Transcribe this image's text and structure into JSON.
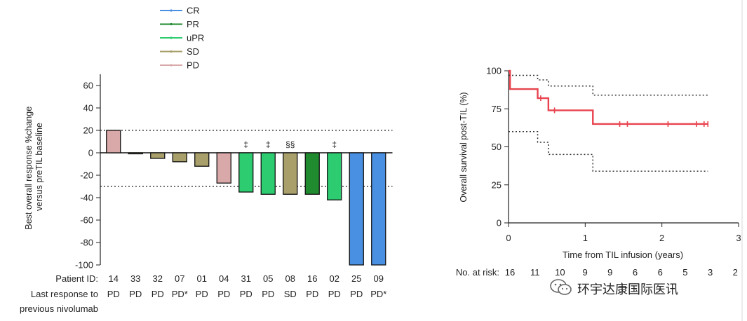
{
  "chart_data": [
    {
      "type": "bar",
      "ylabel": "Best overall response %change versus preTIL baseline",
      "ylim": [
        -100,
        70
      ],
      "yticks": [
        60,
        40,
        20,
        0,
        -20,
        -40,
        -60,
        -80,
        -100
      ],
      "ytick_labels": [
        "60",
        "40",
        "20",
        "0",
        "-20",
        "-40",
        "-60",
        "-80",
        "-100"
      ],
      "reference_lines": [
        20,
        -30
      ],
      "legend": {
        "placement": "top-center",
        "entries": [
          {
            "label": "CR",
            "color": "#4a90e2"
          },
          {
            "label": "PR",
            "color": "#1f8a2e"
          },
          {
            "label": "uPR",
            "color": "#2ecc71"
          },
          {
            "label": "SD",
            "color": "#a89f6b"
          },
          {
            "label": "PD",
            "color": "#d9a8a8"
          }
        ]
      },
      "row_labels": {
        "patient_id": "Patient ID:",
        "last_response_1": "Last response to",
        "last_response_2": "previous nivolumab"
      },
      "bars": [
        {
          "patient_id": "14",
          "last_response": "PD",
          "value": 20,
          "category": "PD",
          "marker": ""
        },
        {
          "patient_id": "33",
          "last_response": "PD",
          "value": -0.5,
          "category": "SD",
          "marker": ""
        },
        {
          "patient_id": "32",
          "last_response": "PD",
          "value": -5,
          "category": "SD",
          "marker": ""
        },
        {
          "patient_id": "07",
          "last_response": "PD*",
          "value": -8,
          "category": "SD",
          "marker": ""
        },
        {
          "patient_id": "01",
          "last_response": "PD",
          "value": -12,
          "category": "SD",
          "marker": ""
        },
        {
          "patient_id": "04",
          "last_response": "PD",
          "value": -27,
          "category": "PD",
          "marker": ""
        },
        {
          "patient_id": "31",
          "last_response": "PD",
          "value": -35,
          "category": "uPR",
          "marker": "‡"
        },
        {
          "patient_id": "05",
          "last_response": "PD",
          "value": -37,
          "category": "uPR",
          "marker": "‡"
        },
        {
          "patient_id": "08",
          "last_response": "SD",
          "value": -37,
          "category": "SD",
          "marker": "§§"
        },
        {
          "patient_id": "16",
          "last_response": "PD",
          "value": -37,
          "category": "PR",
          "marker": ""
        },
        {
          "patient_id": "02",
          "last_response": "PD",
          "value": -42,
          "category": "uPR",
          "marker": "‡"
        },
        {
          "patient_id": "25",
          "last_response": "PD",
          "value": -100,
          "category": "CR",
          "marker": ""
        },
        {
          "patient_id": "09",
          "last_response": "PD*",
          "value": -100,
          "category": "CR",
          "marker": ""
        }
      ]
    },
    {
      "type": "line",
      "ylabel": "Overall survival post-TIL (%)",
      "xlabel": "Time from TIL infusion (years)",
      "xlim": [
        0,
        3
      ],
      "ylim": [
        0,
        100
      ],
      "xticks": [
        0,
        1,
        2,
        3
      ],
      "yticks": [
        0,
        25,
        50,
        75,
        100
      ],
      "series": [
        {
          "role": "estimate",
          "color": "#e8434f",
          "style": "solid",
          "x": [
            0,
            0.02,
            0.38,
            0.52,
            1.1,
            2.6
          ],
          "y": [
            100,
            88,
            82,
            74,
            65,
            65
          ]
        },
        {
          "role": "upper-ci",
          "color": "#333333",
          "style": "dotted",
          "x": [
            0,
            0.38,
            0.52,
            1.1,
            2.6
          ],
          "y": [
            97,
            94,
            90,
            84,
            84
          ]
        },
        {
          "role": "lower-ci",
          "color": "#333333",
          "style": "dotted",
          "x": [
            0,
            0.38,
            0.52,
            1.1,
            2.6
          ],
          "y": [
            60,
            53,
            45,
            34,
            34
          ]
        }
      ],
      "censor_marks": [
        {
          "x": 0.42,
          "y": 82
        },
        {
          "x": 0.6,
          "y": 74
        },
        {
          "x": 1.45,
          "y": 65
        },
        {
          "x": 1.55,
          "y": 65
        },
        {
          "x": 2.08,
          "y": 65
        },
        {
          "x": 2.45,
          "y": 65
        },
        {
          "x": 2.55,
          "y": 65
        },
        {
          "x": 2.6,
          "y": 65
        }
      ],
      "at_risk": {
        "label": "No. at risk:",
        "values": [
          "16",
          "11",
          "10",
          "9",
          "9",
          "6",
          "6",
          "5",
          "3",
          "2"
        ]
      }
    }
  ],
  "watermark": {
    "text": "环宇达康国际医讯",
    "icon": "wechat-icon"
  }
}
